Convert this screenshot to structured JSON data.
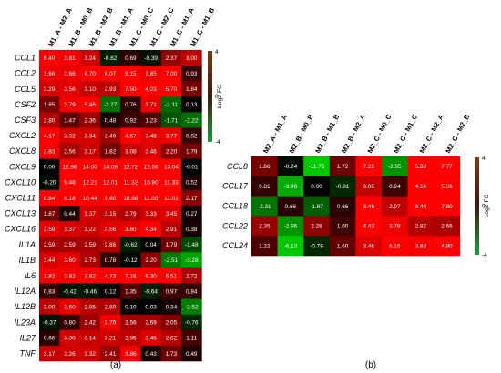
{
  "panels": [
    {
      "panel_label": "(a)",
      "colorbar": {
        "title": "Log2 FC",
        "ticks": [
          "4",
          "0",
          "-4"
        ]
      }
    },
    {
      "panel_label": "(b)",
      "colorbar": {
        "title": "Log2 FC",
        "ticks": [
          "4",
          "0",
          "-4"
        ]
      }
    }
  ],
  "chart_data": [
    {
      "type": "heatmap",
      "panel": "(a)",
      "value_range": [
        -4,
        4
      ],
      "colorscale": [
        "#00c800",
        "#000000",
        "#ff0000"
      ],
      "colorbar_colors": [
        "#1e9e3a",
        "#3b1a12",
        "#7a3a14"
      ],
      "columns": [
        "M1_A - M2_A",
        "M1_B - M0_B",
        "M1_B - M2_B",
        "M1_B - M1_A",
        "M1_C - M0_C",
        "M1_C - M2_C",
        "M1_C - M1_A",
        "M1_C - M1_B"
      ],
      "rows": [
        "CCL1",
        "CCL2",
        "CCL5",
        "CSF2",
        "CSF3",
        "CXCL2",
        "CXCL8",
        "CXCL9",
        "CXCL10",
        "CXCL11",
        "CXCL13",
        "CXCL16",
        "IL1A",
        "IL1B",
        "IL6",
        "IL12A",
        "IL12B",
        "IL23A",
        "IL27",
        "TNF"
      ],
      "values": [
        [
          6.4,
          3.81,
          3.24,
          -0.62,
          0.69,
          -0.39,
          2.37,
          3.0
        ],
        [
          3.66,
          3.66,
          6.7,
          6.07,
          9.15,
          3.65,
          7.0,
          0.93
        ],
        [
          3.29,
          3.56,
          3.1,
          2.93,
          7.5,
          4.23,
          5.7,
          1.84
        ],
        [
          1.85,
          3.79,
          5.46,
          -2.27,
          0.76,
          3.71,
          -2.11,
          0.13
        ],
        [
          2.8,
          1.47,
          2.36,
          0.48,
          0.92,
          1.23,
          -1.71,
          -2.22
        ],
        [
          4.17,
          3.32,
          3.34,
          2.49,
          4.57,
          3.48,
          3.77,
          0.82
        ],
        [
          3.83,
          2.56,
          3.17,
          1.82,
          3.08,
          3.46,
          2.2,
          1.79
        ],
        [
          0.0,
          12.96,
          14.0,
          14.08,
          12.72,
          12.56,
          13.04,
          -0.01
        ],
        [
          -0.2,
          9.48,
          12.21,
          12.01,
          11.32,
          10.8,
          11.33,
          0.52
        ],
        [
          8.84,
          8.18,
          10.44,
          9.6,
          10.88,
          11.05,
          11.01,
          2.17
        ],
        [
          1.87,
          0.44,
          3.37,
          3.15,
          2.79,
          3.33,
          3.45,
          0.27
        ],
        [
          3.59,
          3.37,
          3.22,
          3.56,
          3.6,
          4.34,
          2.91,
          0.38
        ],
        [
          2.59,
          2.59,
          2.59,
          2.86,
          -0.62,
          0.04,
          1.79,
          -1.48
        ],
        [
          3.44,
          3.6,
          2.73,
          0.78,
          -0.12,
          2.2,
          -2.51,
          -3.28
        ],
        [
          3.82,
          3.82,
          3.92,
          4.73,
          7.18,
          6.3,
          6.51,
          2.72
        ],
        [
          0.83,
          -0.42,
          -0.46,
          0.12,
          1.35,
          -0.64,
          0.97,
          0.84
        ],
        [
          3.0,
          3.6,
          2.86,
          2.8,
          0.1,
          0.03,
          0.34,
          -2.52
        ],
        [
          -0.37,
          0.8,
          2.42,
          3.79,
          2.56,
          2.69,
          2.05,
          -0.76
        ],
        [
          0.66,
          3.3,
          3.14,
          3.21,
          2.95,
          3.46,
          2.82,
          1.11
        ],
        [
          3.17,
          3.26,
          3.32,
          2.41,
          3.86,
          0.43,
          1.73,
          0.49
        ]
      ]
    },
    {
      "type": "heatmap",
      "panel": "(b)",
      "value_range": [
        -4,
        4
      ],
      "colorscale": [
        "#00c800",
        "#000000",
        "#ff0000"
      ],
      "colorbar_colors": [
        "#1e9e3a",
        "#3b1a12",
        "#7a3a14"
      ],
      "columns": [
        "M2_A - M1_A",
        "M2_B - M0_B",
        "M2_B - M1_B",
        "M2_B - M2_A",
        "M2_C - M0_C",
        "M2_C - M1_C",
        "M2_C - M2_A",
        "M2_C - M2_B"
      ],
      "rows": [
        "CCL8",
        "CCL17",
        "CCL18",
        "CCL22",
        "CCL24"
      ],
      "values": [
        [
          1.86,
          -0.24,
          -11.75,
          1.72,
          7.22,
          -2.95,
          5.88,
          7.77
        ],
        [
          0.81,
          -3.46,
          0.0,
          -0.81,
          3.06,
          0.94,
          4.24,
          5.06
        ],
        [
          -2.31,
          0.66,
          -1.87,
          0.66,
          8.46,
          2.97,
          8.46,
          7.8
        ],
        [
          2.35,
          -2.96,
          2.28,
          1.0,
          4.43,
          3.78,
          2.82,
          2.66
        ],
        [
          1.22,
          -6.13,
          -0.79,
          1.6,
          3.46,
          6.15,
          3.88,
          4.9
        ]
      ]
    }
  ]
}
